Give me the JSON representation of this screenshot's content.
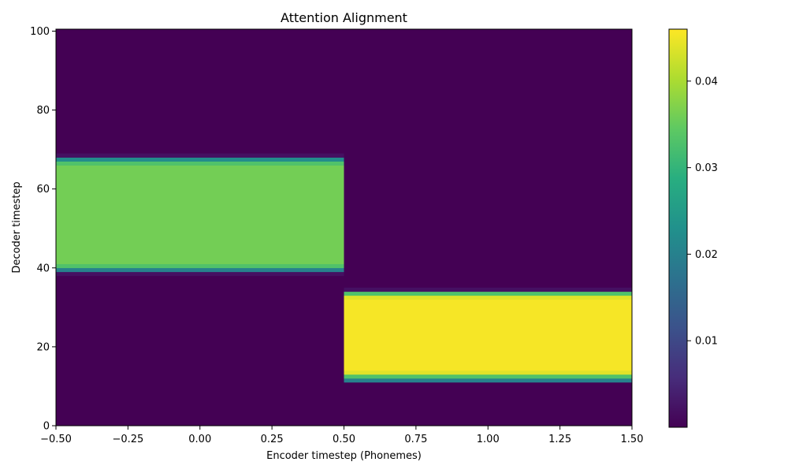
{
  "chart_data": {
    "type": "heatmap",
    "title": "Attention Alignment",
    "xlabel": "Encoder timestep (Phonemes)",
    "ylabel": "Decoder timestep",
    "xlim": [
      -0.5,
      1.5
    ],
    "ylim": [
      0,
      100.5
    ],
    "x_ticks": [
      -0.5,
      -0.25,
      0.0,
      0.25,
      0.5,
      0.75,
      1.0,
      1.25,
      1.5
    ],
    "x_tick_labels": [
      "−0.50",
      "−0.25",
      "0.00",
      "0.25",
      "0.50",
      "0.75",
      "1.00",
      "1.25",
      "1.50"
    ],
    "y_ticks": [
      0,
      20,
      40,
      60,
      80,
      100
    ],
    "y_tick_labels": [
      "0",
      "20",
      "40",
      "60",
      "80",
      "100"
    ],
    "colorbar": {
      "colormap": "viridis",
      "vmin": 0.0,
      "vmax": 0.046,
      "ticks": [
        0.01,
        0.02,
        0.03,
        0.04
      ],
      "tick_labels": [
        "0.01",
        "0.02",
        "0.03",
        "0.04"
      ]
    },
    "columns": [
      {
        "encoder_step": 0,
        "x_range": [
          -0.5,
          0.5
        ],
        "background": 0.0,
        "profile": [
          {
            "rows": [
              38,
              39
            ],
            "value": 0.002
          },
          {
            "rows": [
              39,
              40
            ],
            "value": 0.02
          },
          {
            "rows": [
              40,
              41
            ],
            "value": 0.033
          },
          {
            "rows": [
              41,
              66
            ],
            "value": 0.036
          },
          {
            "rows": [
              66,
              67
            ],
            "value": 0.033
          },
          {
            "rows": [
              67,
              68
            ],
            "value": 0.022
          },
          {
            "rows": [
              68,
              69
            ],
            "value": 0.002
          }
        ]
      },
      {
        "encoder_step": 1,
        "x_range": [
          0.5,
          1.5
        ],
        "background": 0.0,
        "profile": [
          {
            "rows": [
              11,
              12
            ],
            "value": 0.02
          },
          {
            "rows": [
              12,
              13
            ],
            "value": 0.033
          },
          {
            "rows": [
              13,
              14
            ],
            "value": 0.044
          },
          {
            "rows": [
              14,
              32
            ],
            "value": 0.0455
          },
          {
            "rows": [
              32,
              33
            ],
            "value": 0.044
          },
          {
            "rows": [
              33,
              34
            ],
            "value": 0.033
          },
          {
            "rows": [
              34,
              35
            ],
            "value": 0.002
          }
        ]
      }
    ]
  }
}
